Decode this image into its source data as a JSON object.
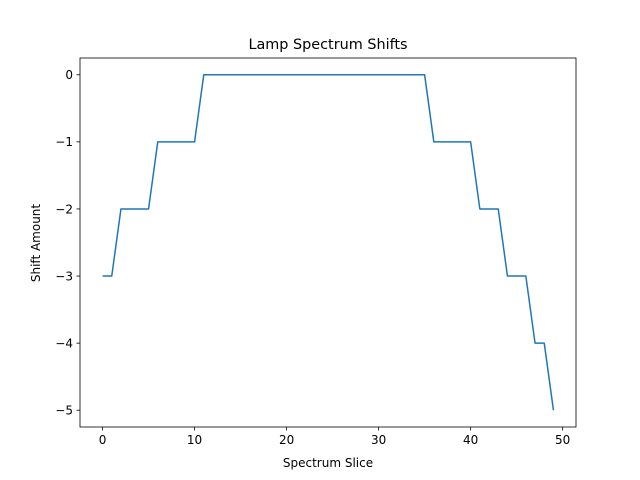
{
  "chart_data": {
    "type": "line",
    "title": "Lamp Spectrum Shifts",
    "xlabel": "Spectrum Slice",
    "ylabel": "Shift Amount",
    "xlim": [
      -2.45,
      51.45
    ],
    "ylim": [
      -5.25,
      0.25
    ],
    "xticks": [
      0,
      10,
      20,
      30,
      40,
      50
    ],
    "yticks": [
      0,
      -1,
      -2,
      -3,
      -4,
      -5
    ],
    "xtick_labels": [
      "0",
      "10",
      "20",
      "30",
      "40",
      "50"
    ],
    "ytick_labels": [
      "0",
      "−1",
      "−2",
      "−3",
      "−4",
      "−5"
    ],
    "grid": false,
    "series": [
      {
        "color": "#1f77b4",
        "x": [
          0,
          1,
          2,
          3,
          4,
          5,
          6,
          7,
          8,
          9,
          10,
          11,
          12,
          13,
          14,
          15,
          16,
          17,
          18,
          19,
          20,
          21,
          22,
          23,
          24,
          25,
          26,
          27,
          28,
          29,
          30,
          31,
          32,
          33,
          34,
          35,
          36,
          37,
          38,
          39,
          40,
          41,
          42,
          43,
          44,
          45,
          46,
          47,
          48,
          49
        ],
        "y": [
          -3,
          -3,
          -2,
          -2,
          -2,
          -2,
          -1,
          -1,
          -1,
          -1,
          -1,
          0,
          0,
          0,
          0,
          0,
          0,
          0,
          0,
          0,
          0,
          0,
          0,
          0,
          0,
          0,
          0,
          0,
          0,
          0,
          0,
          0,
          0,
          0,
          0,
          0,
          -1,
          -1,
          -1,
          -1,
          -1,
          -2,
          -2,
          -2,
          -3,
          -3,
          -3,
          -4,
          -4,
          -5
        ]
      }
    ]
  }
}
